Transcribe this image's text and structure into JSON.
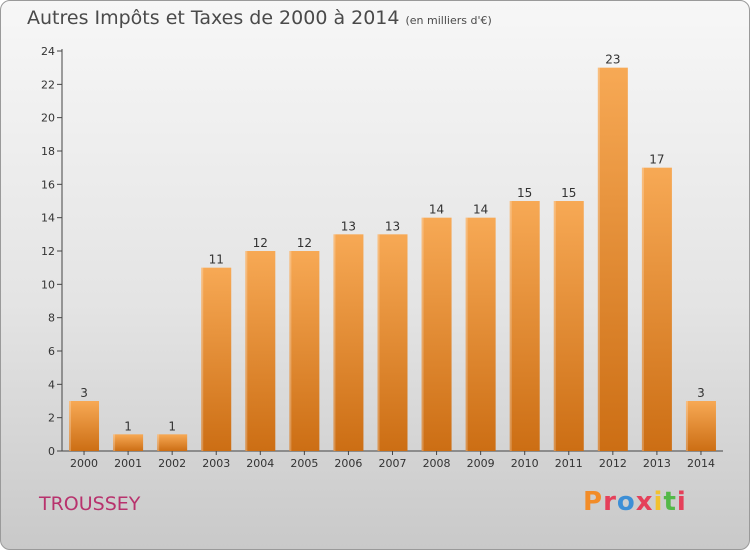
{
  "header": {
    "title": "Autres Impôts et Taxes de 2000 à 2014",
    "subtitle": "(en milliers d'€)"
  },
  "footer": {
    "commune": "TROUSSEY",
    "brand": "Proxiti"
  },
  "colors": {
    "bar_light": "#f7a955",
    "bar_dark": "#cc6e14",
    "commune": "#b8326d",
    "axis": "#444444",
    "brand_letters": [
      "#f28c28",
      "#e5405a",
      "#3d8fd6",
      "#e5405a",
      "#f2c12e",
      "#54b848",
      "#e5405a"
    ]
  },
  "chart_data": {
    "type": "bar",
    "title": "Autres Impôts et Taxes de 2000 à 2014",
    "subtitle": "(en milliers d'€)",
    "xlabel": "",
    "ylabel": "",
    "categories": [
      "2000",
      "2001",
      "2002",
      "2003",
      "2004",
      "2005",
      "2006",
      "2007",
      "2008",
      "2009",
      "2010",
      "2011",
      "2012",
      "2013",
      "2014"
    ],
    "values": [
      3,
      1,
      1,
      11,
      12,
      12,
      13,
      13,
      14,
      14,
      15,
      15,
      23,
      17,
      3
    ],
    "ylim": [
      0,
      24
    ],
    "yticks": [
      0,
      2,
      4,
      6,
      8,
      10,
      12,
      14,
      16,
      18,
      20,
      22,
      24
    ],
    "grid": false,
    "data_labels": true,
    "legend": "none"
  }
}
